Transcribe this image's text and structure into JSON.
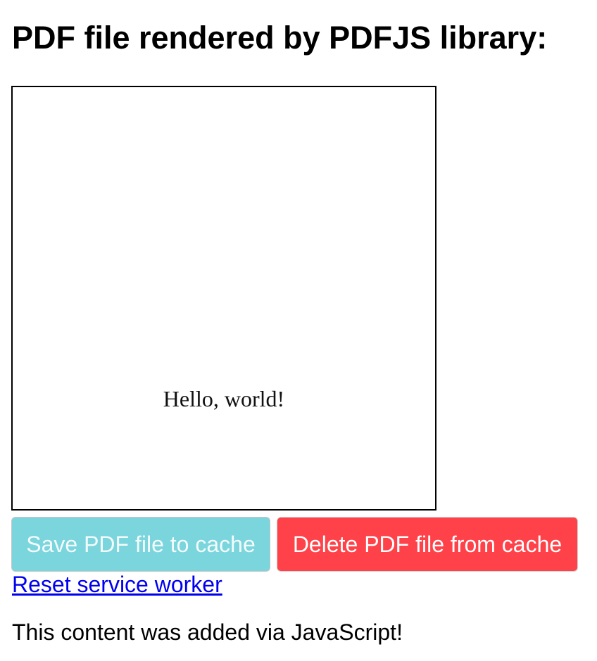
{
  "page": {
    "title": "PDF file rendered by PDFJS library:"
  },
  "pdf_viewer": {
    "content_text": "Hello, world!"
  },
  "actions": {
    "save_label": "Save PDF file to cache",
    "delete_label": "Delete PDF file from cache",
    "reset_link_label": "Reset service worker"
  },
  "footer": {
    "message": "This content was added via JavaScript!"
  },
  "colors": {
    "save_button_bg": "#7ad5dd",
    "delete_button_bg": "#ff4249",
    "link": "#0000ee"
  }
}
